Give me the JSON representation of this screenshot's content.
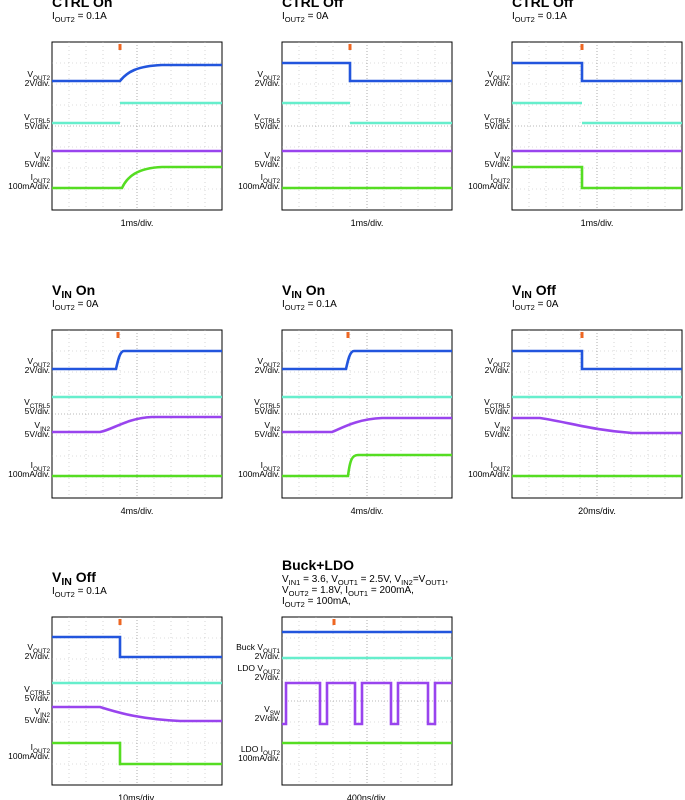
{
  "panels": [
    {
      "title": [
        "CTRL On"
      ],
      "condition": [
        [
          "I",
          "OUT2",
          " = 0.1A"
        ]
      ],
      "channels": [
        {
          "name": [
            "V",
            "OUT2"
          ],
          "scale": "2V/div."
        },
        {
          "name": [
            "V",
            "CTRL5"
          ],
          "scale": "5V/div."
        },
        {
          "name": [
            "V",
            "IN2"
          ],
          "scale": "5V/div."
        },
        {
          "name": [
            "I",
            "OUT2"
          ],
          "scale": "100mA/div."
        }
      ],
      "timebase": "1ms/div."
    },
    {
      "title": [
        "CTRL Off"
      ],
      "condition": [
        [
          "I",
          "OUT2",
          " = 0A"
        ]
      ],
      "channels": [
        {
          "name": [
            "V",
            "OUT2"
          ],
          "scale": "2V/div."
        },
        {
          "name": [
            "V",
            "CTRL5"
          ],
          "scale": "5V/div."
        },
        {
          "name": [
            "V",
            "IN2"
          ],
          "scale": "5V/div."
        },
        {
          "name": [
            "I",
            "OUT2"
          ],
          "scale": "100mA/div."
        }
      ],
      "timebase": "1ms/div."
    },
    {
      "title": [
        "CTRL Off"
      ],
      "condition": [
        [
          "I",
          "OUT2",
          " = 0.1A"
        ]
      ],
      "channels": [
        {
          "name": [
            "V",
            "OUT2"
          ],
          "scale": "2V/div."
        },
        {
          "name": [
            "V",
            "CTRL5"
          ],
          "scale": "5V/div."
        },
        {
          "name": [
            "V",
            "IN2"
          ],
          "scale": "5V/div."
        },
        {
          "name": [
            "I",
            "OUT2"
          ],
          "scale": "100mA/div."
        }
      ],
      "timebase": "1ms/div."
    },
    {
      "title": [
        "V",
        "IN",
        " On"
      ],
      "condition": [
        [
          "I",
          "OUT2",
          " = 0A"
        ]
      ],
      "channels": [
        {
          "name": [
            "V",
            "OUT2"
          ],
          "scale": "2V/div."
        },
        {
          "name": [
            "V",
            "CTRL5"
          ],
          "scale": "5V/div."
        },
        {
          "name": [
            "V",
            "IN2"
          ],
          "scale": "5V/div."
        },
        {
          "name": [
            "I",
            "OUT2"
          ],
          "scale": "100mA/div."
        }
      ],
      "timebase": "4ms/div."
    },
    {
      "title": [
        "V",
        "IN",
        " On"
      ],
      "condition": [
        [
          "I",
          "OUT2",
          " = 0.1A"
        ]
      ],
      "channels": [
        {
          "name": [
            "V",
            "OUT2"
          ],
          "scale": "2V/div."
        },
        {
          "name": [
            "V",
            "CTRL5"
          ],
          "scale": "5V/div."
        },
        {
          "name": [
            "V",
            "IN2"
          ],
          "scale": "5V/div."
        },
        {
          "name": [
            "I",
            "OUT2"
          ],
          "scale": "100mA/div."
        }
      ],
      "timebase": "4ms/div."
    },
    {
      "title": [
        "V",
        "IN",
        " Off"
      ],
      "condition": [
        [
          "I",
          "OUT2",
          " = 0A"
        ]
      ],
      "channels": [
        {
          "name": [
            "V",
            "OUT2"
          ],
          "scale": "2V/div."
        },
        {
          "name": [
            "V",
            "CTRL5"
          ],
          "scale": "5V/div."
        },
        {
          "name": [
            "V",
            "IN2"
          ],
          "scale": "5V/div."
        },
        {
          "name": [
            "I",
            "OUT2"
          ],
          "scale": "100mA/div."
        }
      ],
      "timebase": "20ms/div."
    },
    {
      "title": [
        "V",
        "IN",
        " Off"
      ],
      "condition": [
        [
          "I",
          "OUT2",
          " = 0.1A"
        ]
      ],
      "channels": [
        {
          "name": [
            "V",
            "OUT2"
          ],
          "scale": "2V/div."
        },
        {
          "name": [
            "V",
            "CTRL5"
          ],
          "scale": "5V/div."
        },
        {
          "name": [
            "V",
            "IN2"
          ],
          "scale": "5V/div."
        },
        {
          "name": [
            "I",
            "OUT2"
          ],
          "scale": "100mA/div."
        }
      ],
      "timebase": "10ms/div."
    },
    {
      "title": [
        "Buck+LDO"
      ],
      "condition": [
        [
          "V",
          "IN1",
          " = 3.6, V",
          "OUT1",
          " = 2.5V, V",
          "IN2",
          "=V",
          "OUT1",
          ","
        ],
        [
          "V",
          "OUT2",
          " = 1.8V, I",
          "OUT1",
          " = 200mA,"
        ],
        [
          "I",
          "OUT2",
          " = 100mA,"
        ]
      ],
      "channels": [
        {
          "name": [
            "Buck V",
            "OUT1"
          ],
          "scale": "2V/div."
        },
        {
          "name": [
            "LDO V",
            "OUT2"
          ],
          "scale": "2V/div."
        },
        {
          "name": [
            "V",
            "SW"
          ],
          "scale": "2V/div."
        },
        {
          "name": [
            "LDO I",
            "OUT2"
          ],
          "scale": "100mA/div."
        }
      ],
      "timebase": "400ns/div."
    }
  ]
}
